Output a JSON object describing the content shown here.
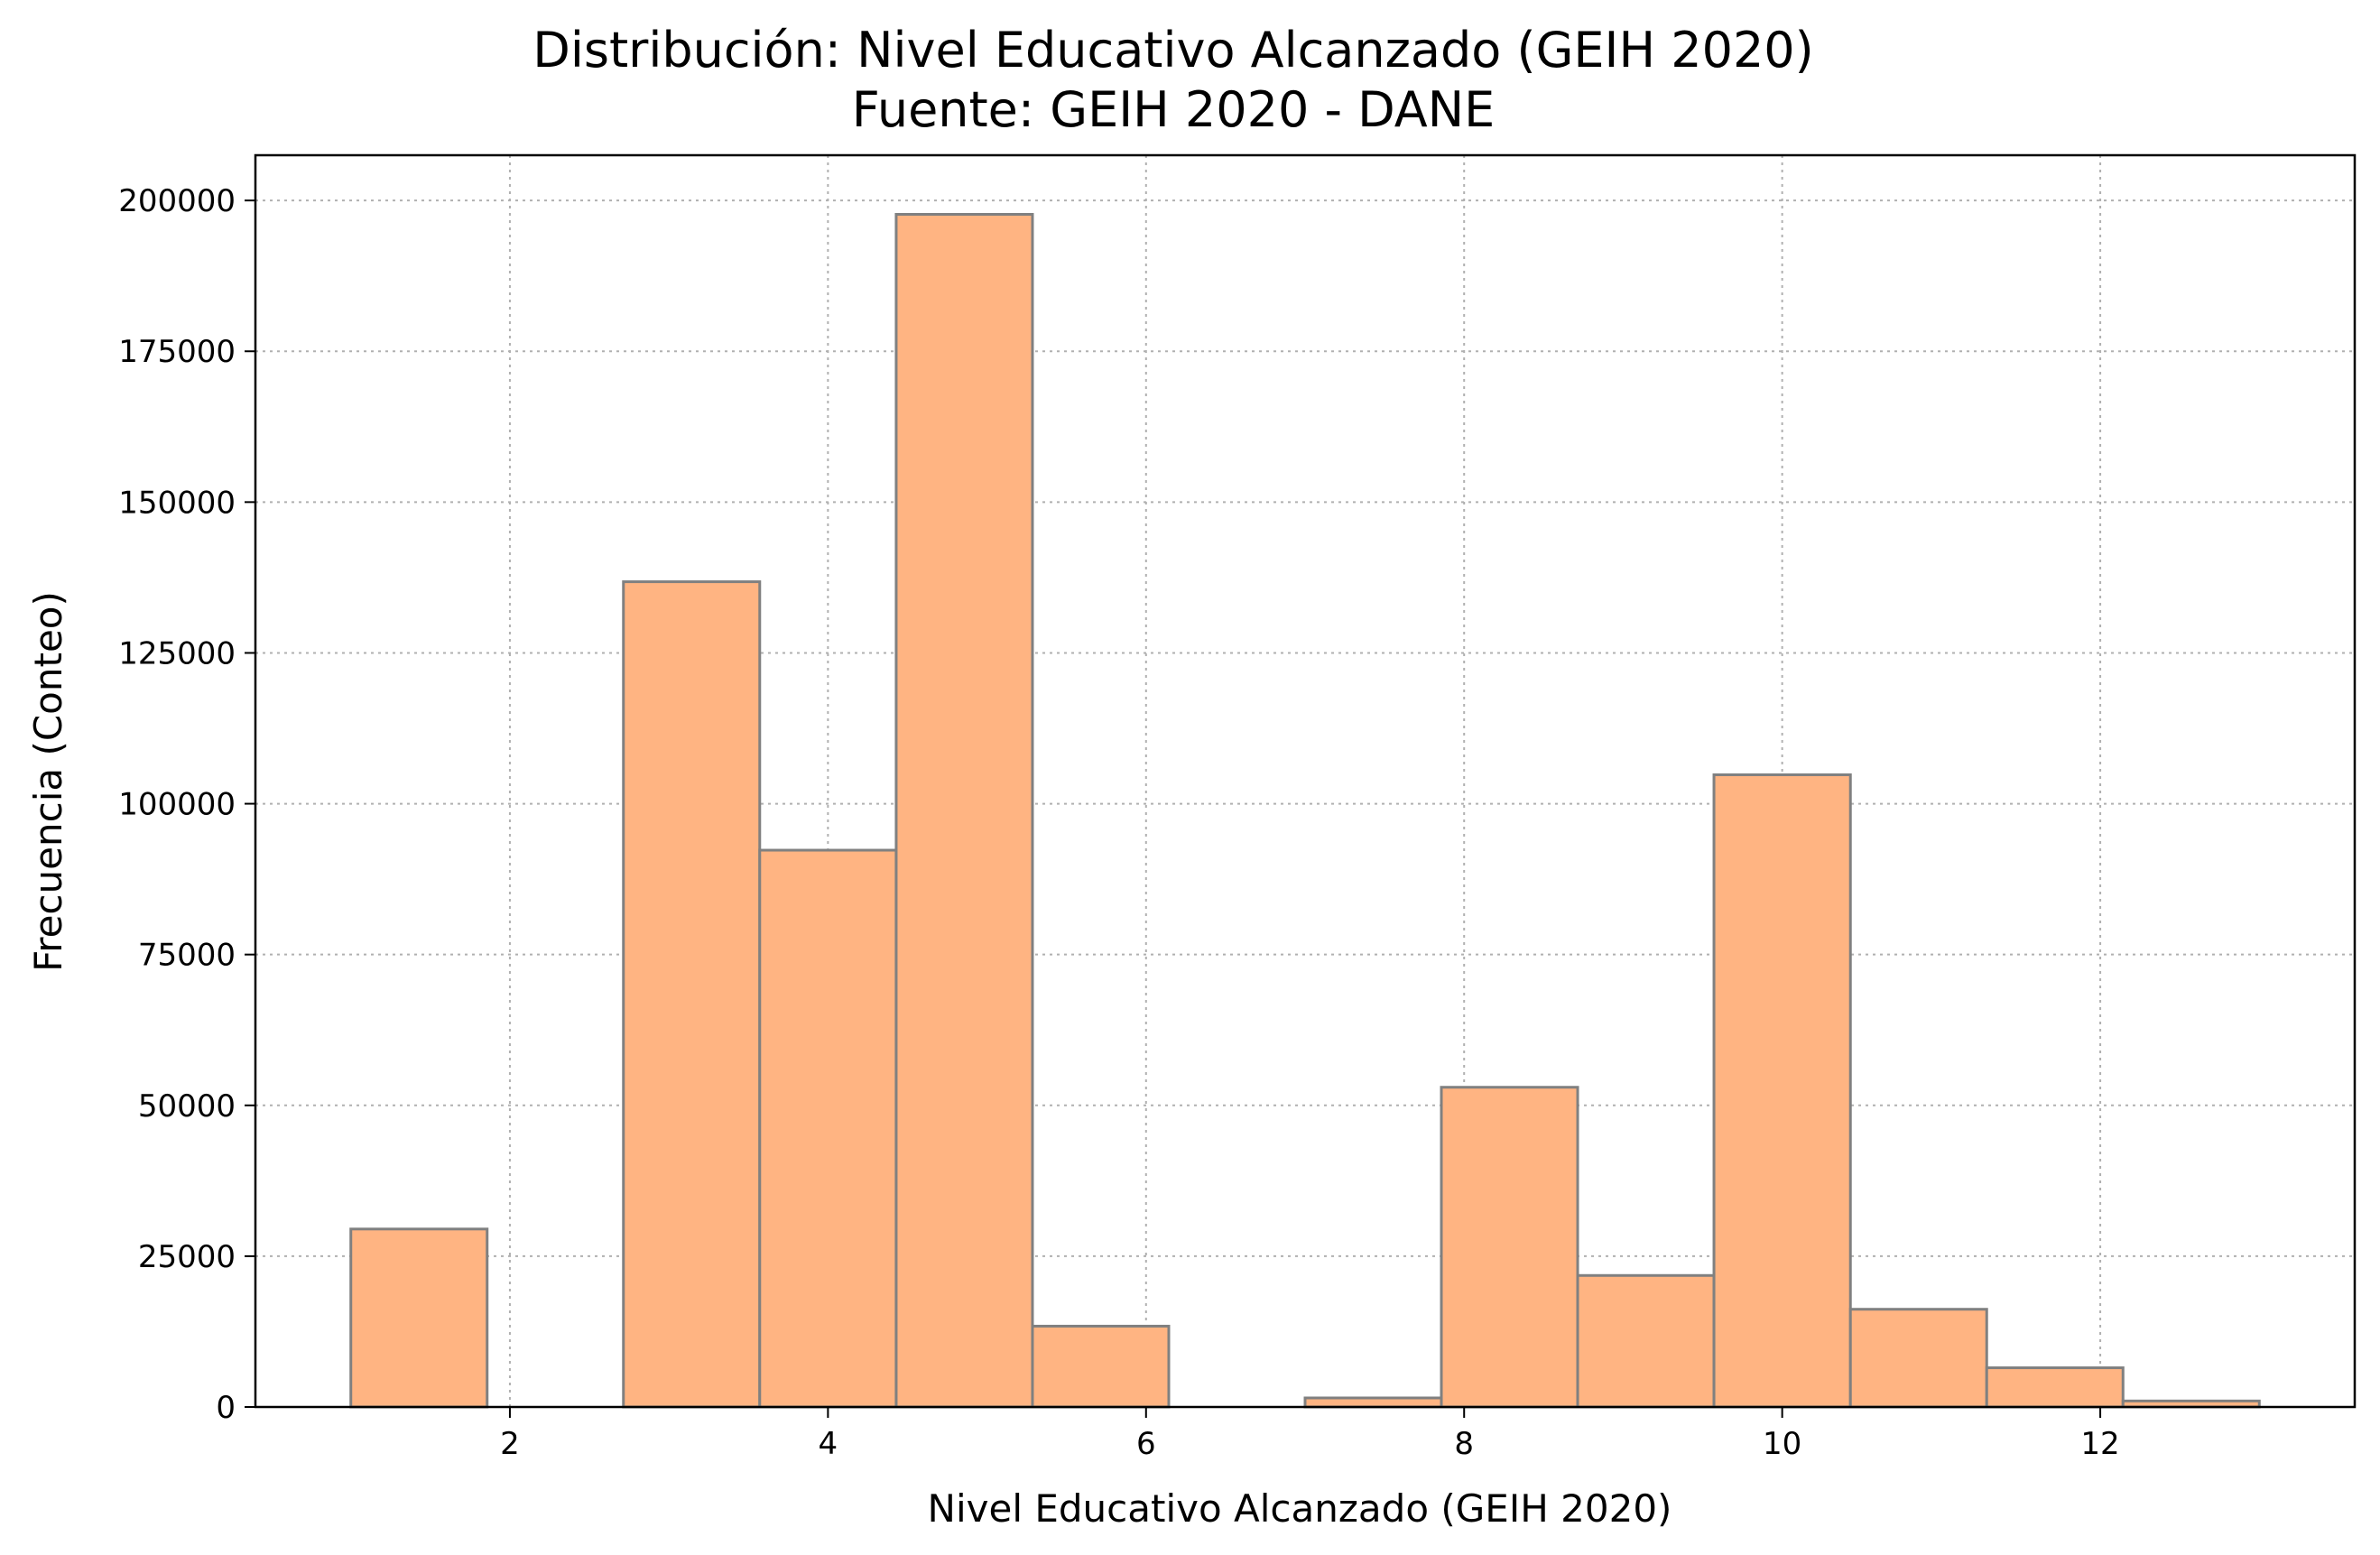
{
  "chart_data": {
    "type": "bar",
    "title": "Distribución: Nivel Educativo Alcanzado (GEIH 2020)",
    "subtitle": "Fuente: GEIH 2020 - DANE",
    "xlabel": "Nivel Educativo Alcanzado (GEIH 2020)",
    "ylabel": "Frecuencia (Conteo)",
    "xlim": [
      0.4,
      13.6
    ],
    "ylim": [
      0,
      207500
    ],
    "xticks": [
      2,
      4,
      6,
      8,
      10,
      12
    ],
    "yticks": [
      0,
      25000,
      50000,
      75000,
      100000,
      125000,
      150000,
      175000,
      200000
    ],
    "bin_edges": [
      1.0,
      1.857,
      2.714,
      3.571,
      4.429,
      5.286,
      6.143,
      7.0,
      7.857,
      8.714,
      9.571,
      10.429,
      11.286,
      12.143,
      13.0
    ],
    "values": [
      29500,
      0,
      136800,
      92300,
      197700,
      13400,
      0,
      1500,
      53000,
      21800,
      104800,
      16200,
      6500,
      1000
    ],
    "grid": true,
    "colors": {
      "bar_fill": "#ffb482",
      "bar_edge": "#808080"
    }
  }
}
